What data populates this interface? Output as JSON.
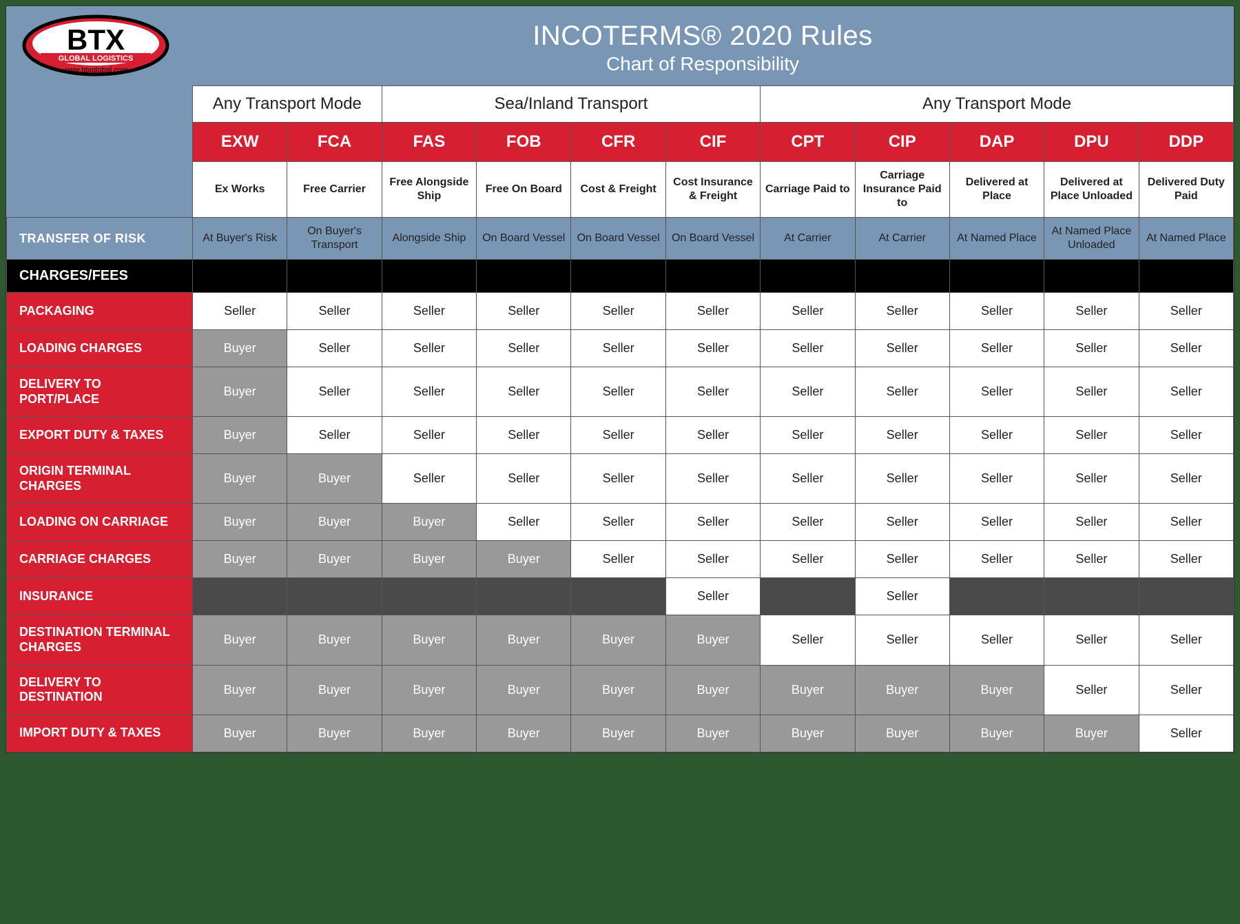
{
  "title": "INCOTERMS® 2020 Rules",
  "subtitle": "Chart of Responsibility",
  "logo": {
    "main": "BTX",
    "sub": "GLOBAL LOGISTICS",
    "url": "www.btxglobal.com"
  },
  "colors": {
    "header_bg": "#7a96b5",
    "red": "#d62031",
    "black": "#000000",
    "white": "#ffffff",
    "buyer_bg": "#999999",
    "blank_bg": "#4a4a4a",
    "page_bg": "#2d5830"
  },
  "groups": [
    {
      "label": "Any Transport Mode",
      "span": 2
    },
    {
      "label": "Sea/Inland Transport",
      "span": 4
    },
    {
      "label": "Any Transport Mode",
      "span": 5
    }
  ],
  "terms": [
    {
      "code": "EXW",
      "desc": "Ex Works",
      "risk": "At Buyer's Risk"
    },
    {
      "code": "FCA",
      "desc": "Free Carrier",
      "risk": "On Buyer's Transport"
    },
    {
      "code": "FAS",
      "desc": "Free Alongside Ship",
      "risk": "Alongside Ship"
    },
    {
      "code": "FOB",
      "desc": "Free On Board",
      "risk": "On Board Vessel"
    },
    {
      "code": "CFR",
      "desc": "Cost & Freight",
      "risk": "On Board Vessel"
    },
    {
      "code": "CIF",
      "desc": "Cost Insurance & Freight",
      "risk": "On Board Vessel"
    },
    {
      "code": "CPT",
      "desc": "Carriage Paid to",
      "risk": "At Carrier"
    },
    {
      "code": "CIP",
      "desc": "Carriage Insurance Paid to",
      "risk": "At Carrier"
    },
    {
      "code": "DAP",
      "desc": "Delivered at Place",
      "risk": "At Named Place"
    },
    {
      "code": "DPU",
      "desc": "Delivered at Place Unloaded",
      "risk": "At Named Place Unloaded"
    },
    {
      "code": "DDP",
      "desc": "Delivered Duty Paid",
      "risk": "At Named Place"
    }
  ],
  "risk_label": "TRANSFER OF RISK",
  "section_label": "CHARGES/FEES",
  "rows": [
    {
      "label": "PACKAGING",
      "vals": [
        "Seller",
        "Seller",
        "Seller",
        "Seller",
        "Seller",
        "Seller",
        "Seller",
        "Seller",
        "Seller",
        "Seller",
        "Seller"
      ]
    },
    {
      "label": "LOADING CHARGES",
      "vals": [
        "Buyer",
        "Seller",
        "Seller",
        "Seller",
        "Seller",
        "Seller",
        "Seller",
        "Seller",
        "Seller",
        "Seller",
        "Seller"
      ]
    },
    {
      "label": "DELIVERY TO PORT/PLACE",
      "vals": [
        "Buyer",
        "Seller",
        "Seller",
        "Seller",
        "Seller",
        "Seller",
        "Seller",
        "Seller",
        "Seller",
        "Seller",
        "Seller"
      ]
    },
    {
      "label": "EXPORT DUTY & TAXES",
      "vals": [
        "Buyer",
        "Seller",
        "Seller",
        "Seller",
        "Seller",
        "Seller",
        "Seller",
        "Seller",
        "Seller",
        "Seller",
        "Seller"
      ]
    },
    {
      "label": "ORIGIN TERMINAL CHARGES",
      "vals": [
        "Buyer",
        "Buyer",
        "Seller",
        "Seller",
        "Seller",
        "Seller",
        "Seller",
        "Seller",
        "Seller",
        "Seller",
        "Seller"
      ]
    },
    {
      "label": "LOADING ON CARRIAGE",
      "vals": [
        "Buyer",
        "Buyer",
        "Buyer",
        "Seller",
        "Seller",
        "Seller",
        "Seller",
        "Seller",
        "Seller",
        "Seller",
        "Seller"
      ]
    },
    {
      "label": "CARRIAGE CHARGES",
      "vals": [
        "Buyer",
        "Buyer",
        "Buyer",
        "Buyer",
        "Seller",
        "Seller",
        "Seller",
        "Seller",
        "Seller",
        "Seller",
        "Seller"
      ]
    },
    {
      "label": "INSURANCE",
      "vals": [
        "",
        "",
        "",
        "",
        "",
        "Seller",
        "",
        "Seller",
        "",
        "",
        ""
      ]
    },
    {
      "label": "DESTINATION TERMINAL CHARGES",
      "vals": [
        "Buyer",
        "Buyer",
        "Buyer",
        "Buyer",
        "Buyer",
        "Buyer",
        "Seller",
        "Seller",
        "Seller",
        "Seller",
        "Seller"
      ]
    },
    {
      "label": "DELIVERY TO DESTINATION",
      "vals": [
        "Buyer",
        "Buyer",
        "Buyer",
        "Buyer",
        "Buyer",
        "Buyer",
        "Buyer",
        "Buyer",
        "Buyer",
        "Seller",
        "Seller"
      ]
    },
    {
      "label": "IMPORT DUTY & TAXES",
      "vals": [
        "Buyer",
        "Buyer",
        "Buyer",
        "Buyer",
        "Buyer",
        "Buyer",
        "Buyer",
        "Buyer",
        "Buyer",
        "Buyer",
        "Seller"
      ]
    }
  ]
}
